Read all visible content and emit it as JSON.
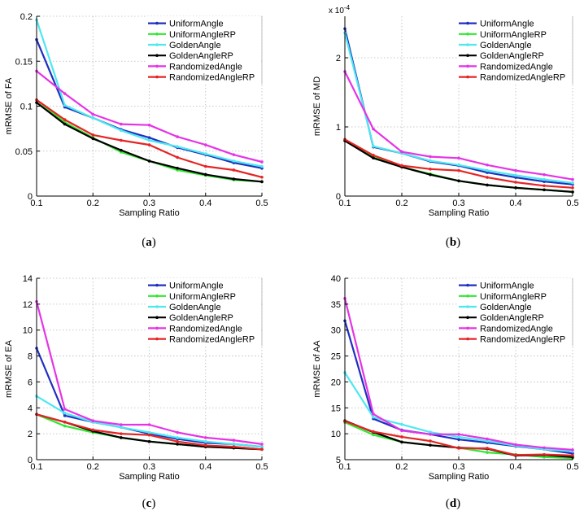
{
  "chart_data": [
    {
      "type": "line",
      "caption_letter": "a",
      "xlabel": "Sampling Ratio",
      "ylabel": "mRMSE of FA",
      "xlim": [
        0.1,
        0.5
      ],
      "ylim": [
        0,
        0.2
      ],
      "x_ticks": [
        "0.1",
        "0.2",
        "0.3",
        "0.4",
        "0.5"
      ],
      "y_ticks": [
        "0",
        "0.05",
        "0.1",
        "0.15",
        "0.2"
      ],
      "scale_label": "",
      "x": [
        0.1,
        0.15,
        0.2,
        0.25,
        0.3,
        0.35,
        0.4,
        0.45,
        0.5
      ],
      "series": [
        {
          "name": "UniformAngle",
          "color": "#1f2fbf",
          "values": [
            0.174,
            0.099,
            0.087,
            0.074,
            0.065,
            0.054,
            0.046,
            0.037,
            0.031
          ]
        },
        {
          "name": "UniformAngleRP",
          "color": "#33e633",
          "values": [
            0.107,
            0.082,
            0.065,
            0.049,
            0.039,
            0.029,
            0.023,
            0.018,
            0.016
          ]
        },
        {
          "name": "GoldenAngle",
          "color": "#4de8f0",
          "values": [
            0.196,
            0.101,
            0.087,
            0.073,
            0.062,
            0.055,
            0.047,
            0.039,
            0.033
          ]
        },
        {
          "name": "GoldenAngleRP",
          "color": "#000000",
          "values": [
            0.104,
            0.08,
            0.064,
            0.051,
            0.039,
            0.031,
            0.024,
            0.019,
            0.016
          ]
        },
        {
          "name": "RandomizedAngle",
          "color": "#e633e6",
          "values": [
            0.139,
            0.114,
            0.091,
            0.08,
            0.079,
            0.066,
            0.057,
            0.046,
            0.038
          ]
        },
        {
          "name": "RandomizedAngleRP",
          "color": "#e62424",
          "values": [
            0.107,
            0.085,
            0.068,
            0.062,
            0.057,
            0.043,
            0.033,
            0.029,
            0.021
          ]
        }
      ]
    },
    {
      "type": "line",
      "caption_letter": "b",
      "xlabel": "Sampling Ratio",
      "ylabel": "mRMSE of MD",
      "xlim": [
        0.1,
        0.5
      ],
      "ylim": [
        0,
        2.6
      ],
      "x_ticks": [
        "0.1",
        "0.2",
        "0.3",
        "0.4",
        "0.5"
      ],
      "y_ticks": [
        "0",
        "1",
        "2"
      ],
      "scale_label": "x 10",
      "scale_exponent": "-4",
      "x": [
        0.1,
        0.15,
        0.2,
        0.25,
        0.3,
        0.35,
        0.4,
        0.45,
        0.5
      ],
      "series": [
        {
          "name": "UniformAngle",
          "color": "#1f2fbf",
          "values": [
            2.42,
            0.71,
            0.62,
            0.5,
            0.44,
            0.34,
            0.27,
            0.21,
            0.17
          ]
        },
        {
          "name": "UniformAngleRP",
          "color": "#33e633",
          "values": [
            0.81,
            0.57,
            0.42,
            0.32,
            0.22,
            0.16,
            0.12,
            0.09,
            0.06
          ]
        },
        {
          "name": "GoldenAngle",
          "color": "#4de8f0",
          "values": [
            2.36,
            0.72,
            0.62,
            0.51,
            0.45,
            0.37,
            0.3,
            0.24,
            0.19
          ]
        },
        {
          "name": "GoldenAngleRP",
          "color": "#000000",
          "values": [
            0.8,
            0.55,
            0.42,
            0.31,
            0.22,
            0.16,
            0.12,
            0.09,
            0.06
          ]
        },
        {
          "name": "RandomizedAngle",
          "color": "#e633e6",
          "values": [
            1.8,
            0.97,
            0.64,
            0.57,
            0.55,
            0.45,
            0.37,
            0.31,
            0.24
          ]
        },
        {
          "name": "RandomizedAngleRP",
          "color": "#e62424",
          "values": [
            0.82,
            0.59,
            0.44,
            0.39,
            0.37,
            0.27,
            0.2,
            0.15,
            0.12
          ]
        }
      ]
    },
    {
      "type": "line",
      "caption_letter": "c",
      "xlabel": "Sampling Ratio",
      "ylabel": "mRMSE of EA",
      "xlim": [
        0.1,
        0.5
      ],
      "ylim": [
        0,
        14
      ],
      "x_ticks": [
        "0.1",
        "0.2",
        "0.3",
        "0.4",
        "0.5"
      ],
      "y_ticks": [
        "0",
        "2",
        "4",
        "6",
        "8",
        "10",
        "12",
        "14"
      ],
      "scale_label": "",
      "x": [
        0.1,
        0.15,
        0.2,
        0.25,
        0.3,
        0.35,
        0.4,
        0.45,
        0.5
      ],
      "series": [
        {
          "name": "UniformAngle",
          "color": "#1f2fbf",
          "values": [
            8.6,
            3.4,
            2.9,
            2.5,
            2.0,
            1.6,
            1.3,
            1.2,
            1.0
          ]
        },
        {
          "name": "UniformAngleRP",
          "color": "#33e633",
          "values": [
            3.5,
            2.6,
            2.1,
            1.7,
            1.4,
            1.2,
            1.0,
            0.9,
            0.8
          ]
        },
        {
          "name": "GoldenAngle",
          "color": "#4de8f0",
          "values": [
            4.9,
            3.6,
            2.9,
            2.5,
            2.1,
            1.7,
            1.4,
            1.2,
            1.0
          ]
        },
        {
          "name": "GoldenAngleRP",
          "color": "#000000",
          "values": [
            3.5,
            2.9,
            2.2,
            1.7,
            1.4,
            1.2,
            1.0,
            0.9,
            0.8
          ]
        },
        {
          "name": "RandomizedAngle",
          "color": "#e633e6",
          "values": [
            12.2,
            3.9,
            3.0,
            2.7,
            2.7,
            2.1,
            1.7,
            1.5,
            1.2
          ]
        },
        {
          "name": "RandomizedAngleRP",
          "color": "#e62424",
          "values": [
            3.5,
            2.9,
            2.3,
            2.0,
            1.9,
            1.4,
            1.1,
            1.0,
            0.8
          ]
        }
      ]
    },
    {
      "type": "line",
      "caption_letter": "d",
      "xlabel": "Sampling Ratio",
      "ylabel": "mRMSE of AA",
      "xlim": [
        0.1,
        0.5
      ],
      "ylim": [
        5,
        40
      ],
      "x_ticks": [
        "0.1",
        "0.2",
        "0.3",
        "0.4",
        "0.5"
      ],
      "y_ticks": [
        "5",
        "10",
        "15",
        "20",
        "25",
        "30",
        "35",
        "40"
      ],
      "scale_label": "",
      "x": [
        0.1,
        0.15,
        0.2,
        0.25,
        0.3,
        0.35,
        0.4,
        0.45,
        0.5
      ],
      "series": [
        {
          "name": "UniformAngle",
          "color": "#1f2fbf",
          "values": [
            31.8,
            12.9,
            10.7,
            9.9,
            8.9,
            8.3,
            7.6,
            7.0,
            6.2
          ]
        },
        {
          "name": "UniformAngleRP",
          "color": "#33e633",
          "values": [
            12.2,
            9.8,
            8.4,
            7.8,
            7.3,
            6.4,
            6.0,
            5.5,
            5.3
          ]
        },
        {
          "name": "GoldenAngle",
          "color": "#4de8f0",
          "values": [
            21.8,
            13.2,
            11.8,
            10.3,
            9.4,
            8.6,
            7.7,
            7.0,
            6.6
          ]
        },
        {
          "name": "GoldenAngleRP",
          "color": "#000000",
          "values": [
            12.5,
            10.3,
            8.4,
            7.8,
            7.3,
            7.1,
            5.8,
            5.9,
            5.5
          ]
        },
        {
          "name": "RandomizedAngle",
          "color": "#e633e6",
          "values": [
            36.1,
            13.8,
            10.6,
            9.9,
            9.9,
            9.0,
            7.9,
            7.3,
            6.9
          ]
        },
        {
          "name": "RandomizedAngleRP",
          "color": "#e62424",
          "values": [
            12.4,
            10.4,
            9.4,
            8.6,
            7.2,
            7.2,
            5.9,
            6.0,
            5.8
          ]
        }
      ]
    }
  ]
}
